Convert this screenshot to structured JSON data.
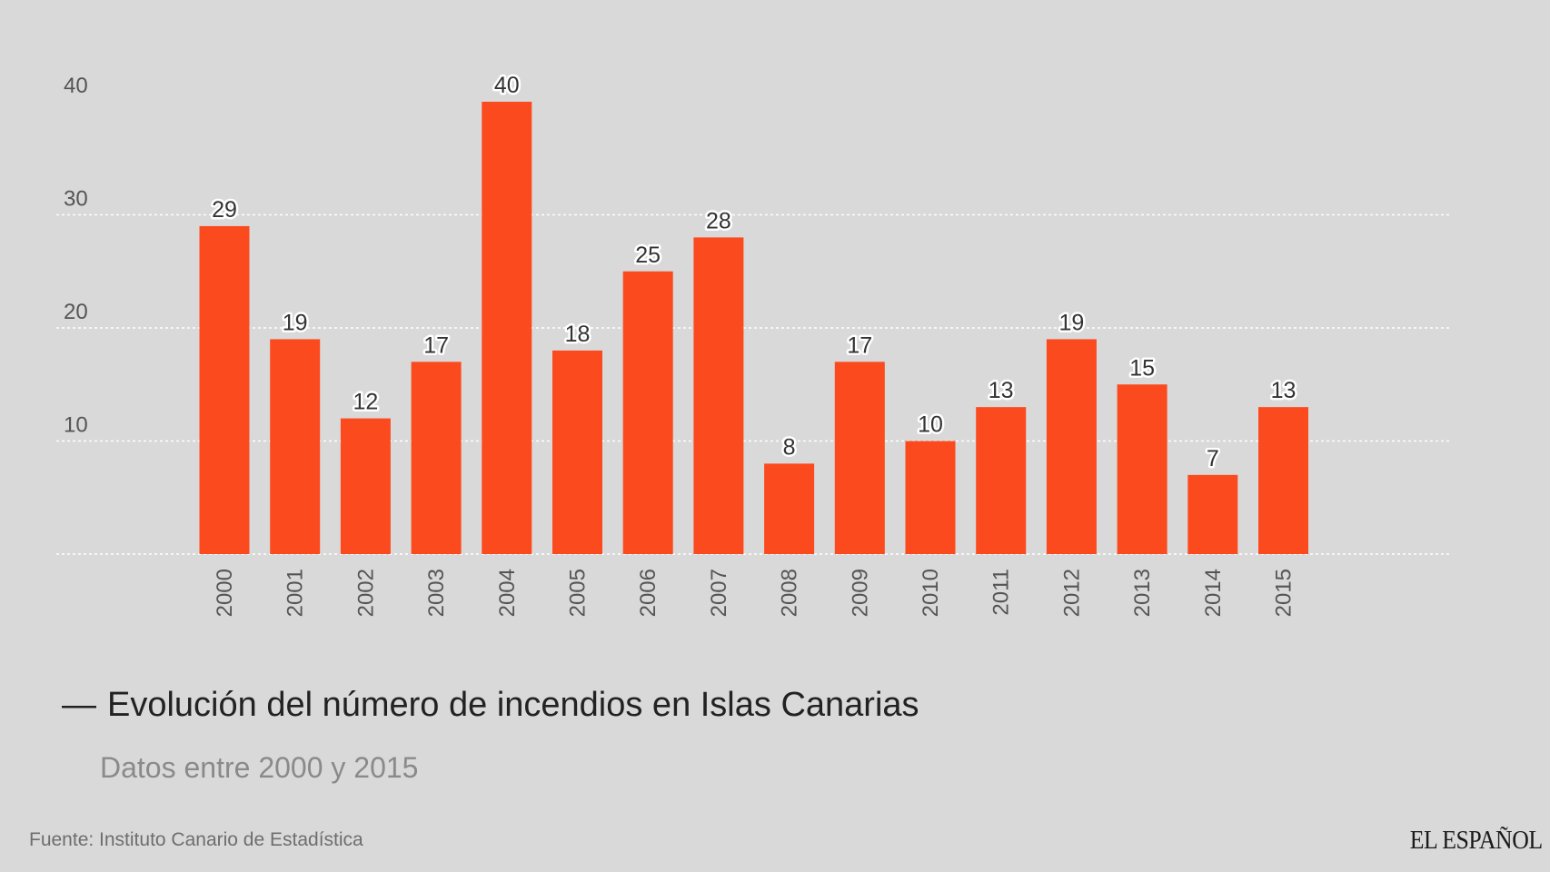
{
  "chart_data": {
    "type": "bar",
    "title": "Evolución del número de incendios en Islas Canarias",
    "subtitle": "Datos entre 2000 y 2015",
    "title_prefix": "—",
    "xlabel": "",
    "ylabel": "",
    "categories": [
      "2000",
      "2001",
      "2002",
      "2003",
      "2004",
      "2005",
      "2006",
      "2007",
      "2008",
      "2009",
      "2010",
      "2011",
      "2012",
      "2013",
      "2014",
      "2015"
    ],
    "values": [
      29,
      19,
      12,
      17,
      40,
      18,
      25,
      28,
      8,
      17,
      10,
      13,
      19,
      15,
      7,
      13
    ],
    "ylim": [
      0,
      40
    ],
    "yticks": [
      10,
      20,
      30,
      40
    ],
    "grid": true,
    "bar_color": "#fc4a1f",
    "label_stroke_color": "#ffffff"
  },
  "footer": {
    "source": "Fuente: Instituto Canario de Estadística",
    "brand": "EL ESPAÑOL"
  }
}
